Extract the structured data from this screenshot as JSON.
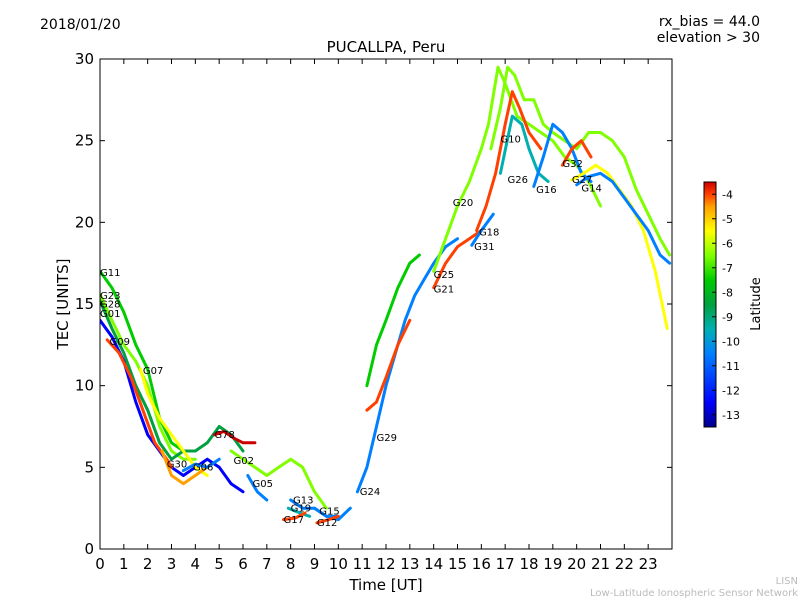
{
  "header": {
    "date": "2018/01/20",
    "rx_bias": "rx_bias = 44.0",
    "elevation": "elevation > 30"
  },
  "footer": {
    "line1": "LISN",
    "line2": "Low-Latitude Ionospheric Sensor Network"
  },
  "colors": {
    "cmap": [
      "#00008b",
      "#0000ff",
      "#0080ff",
      "#00b0b0",
      "#00a040",
      "#00cc00",
      "#80ff00",
      "#ffff00",
      "#ffa000",
      "#ff4000",
      "#cc0000"
    ]
  },
  "chart_data": {
    "type": "line",
    "title": "PUCALLPA, Peru",
    "xlabel": "Time [UT]",
    "ylabel": "TEC [UNITS]",
    "xlim": [
      0,
      24
    ],
    "ylim": [
      0,
      30
    ],
    "xticks": [
      0,
      1,
      2,
      3,
      4,
      5,
      6,
      7,
      8,
      9,
      10,
      11,
      12,
      13,
      14,
      15,
      16,
      17,
      18,
      19,
      20,
      21,
      22,
      23
    ],
    "yticks": [
      0,
      5,
      10,
      15,
      20,
      25,
      30
    ],
    "colorbar": {
      "label": "Latitude",
      "min": -13.5,
      "max": -3.5,
      "ticks": [
        -13,
        -12,
        -11,
        -10,
        -9,
        -8,
        -7,
        -6,
        -5,
        -4
      ]
    },
    "series": [
      {
        "name": "G11",
        "lat": -9,
        "label_at": [
          0.0,
          16.7
        ],
        "points": [
          [
            0,
            17.0
          ],
          [
            0.5,
            16.0
          ],
          [
            1.0,
            14.5
          ],
          [
            1.5,
            12.5
          ],
          [
            2.0,
            11.0
          ],
          [
            2.5,
            8.0
          ],
          [
            3.0,
            6.5
          ],
          [
            3.5,
            6.0
          ]
        ]
      },
      {
        "name": "G23",
        "lat": -8,
        "label_at": [
          0.0,
          15.3
        ],
        "points": [
          [
            0,
            15.6
          ],
          [
            0.5,
            14.0
          ],
          [
            1.0,
            12.5
          ],
          [
            1.5,
            11.5
          ],
          [
            2.0,
            10.0
          ],
          [
            2.5,
            7.5
          ],
          [
            3.0,
            6.0
          ],
          [
            3.5,
            5.5
          ],
          [
            4.0,
            5.5
          ]
        ]
      },
      {
        "name": "G28",
        "lat": -10,
        "label_at": [
          0.0,
          14.8
        ],
        "points": [
          [
            0,
            15.2
          ],
          [
            0.5,
            13.5
          ],
          [
            1.0,
            12.0
          ],
          [
            1.5,
            10.0
          ],
          [
            2.0,
            8.5
          ],
          [
            2.5,
            6.5
          ],
          [
            3.0,
            5.5
          ],
          [
            3.5,
            6.0
          ],
          [
            4.0,
            6.0
          ],
          [
            4.5,
            6.5
          ],
          [
            5.0,
            7.5
          ],
          [
            5.5,
            7.0
          ],
          [
            6.0,
            6.0
          ]
        ]
      },
      {
        "name": "G01",
        "lat": -13,
        "label_at": [
          0.0,
          14.2
        ],
        "points": [
          [
            0,
            14.0
          ],
          [
            0.5,
            13.0
          ],
          [
            1.0,
            11.5
          ],
          [
            1.5,
            9.0
          ],
          [
            2.0,
            7.0
          ],
          [
            2.5,
            6.0
          ],
          [
            3.0,
            5.0
          ],
          [
            3.5,
            4.5
          ],
          [
            4.0,
            5.0
          ],
          [
            4.5,
            5.5
          ],
          [
            5.0,
            5.0
          ],
          [
            5.5,
            4.0
          ],
          [
            6.0,
            3.5
          ]
        ]
      },
      {
        "name": "G09",
        "lat": -5,
        "label_at": [
          0.4,
          12.5
        ],
        "points": [
          [
            0.3,
            12.8
          ],
          [
            0.8,
            12.0
          ],
          [
            1.3,
            10.5
          ],
          [
            1.8,
            8.5
          ],
          [
            2.3,
            6.5
          ],
          [
            2.8,
            5.5
          ],
          [
            3.0,
            5.0
          ]
        ]
      },
      {
        "name": "G07",
        "lat": -7,
        "label_at": [
          1.8,
          10.7
        ],
        "points": [
          [
            1.7,
            11.0
          ],
          [
            2.0,
            9.5
          ],
          [
            2.5,
            8.0
          ],
          [
            3.0,
            7.0
          ],
          [
            3.5,
            6.0
          ],
          [
            4.0,
            5.0
          ],
          [
            4.5,
            4.5
          ]
        ]
      },
      {
        "name": "G30",
        "lat": -6,
        "label_at": [
          2.8,
          5.0
        ],
        "points": [
          [
            2.6,
            6.0
          ],
          [
            3.0,
            4.5
          ],
          [
            3.5,
            4.0
          ],
          [
            4.0,
            4.5
          ],
          [
            4.5,
            5.0
          ]
        ]
      },
      {
        "name": "G06",
        "lat": -12,
        "label_at": [
          3.9,
          4.8
        ],
        "points": [
          [
            3.5,
            4.8
          ],
          [
            4.0,
            5.2
          ],
          [
            4.5,
            5.0
          ],
          [
            5.0,
            5.5
          ]
        ]
      },
      {
        "name": "G78",
        "lat": -4,
        "label_at": [
          4.8,
          6.8
        ],
        "points": [
          [
            4.8,
            7.0
          ],
          [
            5.2,
            7.2
          ],
          [
            5.6,
            6.8
          ],
          [
            6.0,
            6.5
          ],
          [
            6.5,
            6.5
          ]
        ]
      },
      {
        "name": "G02",
        "lat": -8,
        "label_at": [
          5.6,
          5.2
        ],
        "points": [
          [
            5.5,
            6.0
          ],
          [
            6.0,
            5.5
          ],
          [
            6.5,
            5.0
          ],
          [
            7.0,
            4.5
          ],
          [
            7.5,
            5.0
          ],
          [
            8.0,
            5.5
          ],
          [
            8.5,
            5.0
          ],
          [
            9.0,
            3.5
          ],
          [
            9.5,
            2.5
          ]
        ]
      },
      {
        "name": "G05",
        "lat": -12,
        "label_at": [
          6.4,
          3.8
        ],
        "points": [
          [
            6.2,
            4.5
          ],
          [
            6.6,
            3.5
          ],
          [
            7.0,
            3.0
          ]
        ]
      },
      {
        "name": "G13",
        "lat": -12,
        "label_at": [
          8.1,
          2.8
        ],
        "points": [
          [
            8.0,
            3.0
          ],
          [
            8.5,
            2.5
          ],
          [
            9.0,
            2.5
          ],
          [
            9.5,
            2.0
          ],
          [
            10.0,
            2.0
          ]
        ]
      },
      {
        "name": "G19",
        "lat": -11,
        "label_at": [
          8.0,
          2.3
        ],
        "points": [
          [
            7.9,
            2.5
          ],
          [
            8.4,
            2.2
          ],
          [
            8.8,
            2.0
          ]
        ]
      },
      {
        "name": "G17",
        "lat": -5,
        "label_at": [
          7.7,
          1.6
        ],
        "points": [
          [
            7.7,
            1.8
          ],
          [
            8.2,
            1.9
          ],
          [
            8.6,
            2.2
          ]
        ]
      },
      {
        "name": "G15",
        "lat": -12,
        "label_at": [
          9.2,
          2.1
        ],
        "points": [
          [
            9.0,
            2.5
          ],
          [
            9.5,
            2.0
          ],
          [
            10.0,
            1.8
          ],
          [
            10.5,
            2.5
          ]
        ]
      },
      {
        "name": "G12",
        "lat": -5,
        "label_at": [
          9.1,
          1.4
        ],
        "points": [
          [
            9.1,
            1.6
          ],
          [
            9.6,
            1.8
          ],
          [
            10.0,
            2.0
          ]
        ]
      },
      {
        "name": "G24",
        "lat": -12,
        "label_at": [
          10.9,
          3.3
        ],
        "points": [
          [
            10.8,
            3.5
          ],
          [
            11.2,
            5.0
          ],
          [
            11.6,
            7.5
          ],
          [
            12.0,
            10.0
          ],
          [
            12.4,
            12.0
          ],
          [
            12.8,
            14.0
          ],
          [
            13.2,
            15.5
          ],
          [
            13.6,
            16.5
          ],
          [
            14.0,
            17.5
          ],
          [
            14.5,
            18.5
          ],
          [
            15.0,
            19.0
          ]
        ]
      },
      {
        "name": "G29",
        "lat": -5,
        "label_at": [
          11.6,
          6.6
        ],
        "points": [
          [
            11.2,
            8.5
          ],
          [
            11.6,
            9.0
          ],
          [
            12.0,
            10.5
          ],
          [
            12.5,
            12.5
          ],
          [
            13.0,
            14.0
          ]
        ]
      },
      {
        "name": "G25",
        "lat": -9,
        "label_at": [
          14.0,
          16.6
        ],
        "points": [
          [
            11.2,
            10.0
          ],
          [
            11.6,
            12.5
          ],
          [
            12.0,
            14.0
          ],
          [
            12.5,
            16.0
          ],
          [
            13.0,
            17.5
          ],
          [
            13.4,
            18.0
          ]
        ]
      },
      {
        "name": "G21",
        "lat": -5,
        "label_at": [
          14.0,
          15.7
        ],
        "points": [
          [
            14.0,
            16.0
          ],
          [
            14.5,
            17.5
          ],
          [
            15.0,
            18.5
          ],
          [
            15.5,
            19.0
          ],
          [
            16.0,
            19.5
          ]
        ]
      },
      {
        "name": "G20",
        "lat": -8,
        "label_at": [
          14.8,
          21.0
        ],
        "points": [
          [
            14.0,
            17.0
          ],
          [
            14.5,
            19.0
          ],
          [
            15.0,
            21.0
          ],
          [
            15.5,
            22.5
          ],
          [
            16.0,
            24.5
          ],
          [
            16.3,
            26.0
          ],
          [
            16.7,
            29.5
          ],
          [
            17.0,
            28.5
          ],
          [
            17.5,
            26.5
          ],
          [
            18.0,
            26.0
          ],
          [
            18.5,
            25.5
          ],
          [
            19.0,
            25.0
          ],
          [
            19.5,
            24.0
          ],
          [
            20.0,
            23.5
          ],
          [
            20.5,
            22.5
          ],
          [
            21.0,
            21.0
          ]
        ]
      },
      {
        "name": "G18",
        "lat": -5,
        "label_at": [
          15.9,
          19.2
        ],
        "points": [
          [
            15.8,
            19.5
          ],
          [
            16.2,
            21.0
          ],
          [
            16.6,
            23.0
          ],
          [
            17.0,
            26.0
          ],
          [
            17.3,
            28.0
          ],
          [
            17.6,
            27.0
          ],
          [
            18.0,
            25.5
          ],
          [
            18.5,
            24.5
          ]
        ]
      },
      {
        "name": "G31",
        "lat": -12,
        "label_at": [
          15.7,
          18.3
        ],
        "points": [
          [
            15.6,
            18.6
          ],
          [
            16.0,
            19.5
          ],
          [
            16.5,
            20.5
          ]
        ]
      },
      {
        "name": "G10",
        "lat": -8,
        "label_at": [
          16.8,
          24.9
        ],
        "points": [
          [
            16.4,
            24.5
          ],
          [
            16.8,
            27.0
          ],
          [
            17.1,
            29.5
          ],
          [
            17.4,
            29.0
          ],
          [
            17.8,
            27.5
          ],
          [
            18.2,
            27.5
          ],
          [
            18.6,
            26.0
          ],
          [
            19.0,
            25.5
          ],
          [
            19.5,
            25.0
          ],
          [
            20.0,
            24.5
          ],
          [
            20.5,
            25.5
          ],
          [
            21.0,
            25.5
          ],
          [
            21.5,
            25.0
          ],
          [
            22.0,
            24.0
          ],
          [
            22.5,
            22.0
          ],
          [
            23.0,
            20.5
          ],
          [
            23.5,
            19.0
          ],
          [
            23.9,
            18.0
          ]
        ]
      },
      {
        "name": "G26",
        "lat": -11,
        "label_at": [
          17.1,
          22.4
        ],
        "points": [
          [
            16.8,
            23.0
          ],
          [
            17.3,
            26.5
          ],
          [
            17.7,
            26.0
          ],
          [
            18.0,
            24.5
          ],
          [
            18.4,
            23.0
          ],
          [
            18.8,
            22.5
          ]
        ]
      },
      {
        "name": "G16",
        "lat": -12,
        "label_at": [
          18.3,
          21.8
        ],
        "points": [
          [
            18.2,
            22.2
          ],
          [
            18.6,
            24.0
          ],
          [
            19.0,
            26.0
          ],
          [
            19.4,
            25.5
          ],
          [
            19.8,
            24.5
          ],
          [
            20.2,
            23.0
          ],
          [
            20.6,
            22.5
          ]
        ]
      },
      {
        "name": "G32",
        "lat": -5,
        "label_at": [
          19.4,
          23.4
        ],
        "points": [
          [
            19.4,
            23.5
          ],
          [
            19.8,
            24.5
          ],
          [
            20.2,
            25.0
          ],
          [
            20.6,
            24.0
          ]
        ]
      },
      {
        "name": "G27",
        "lat": -7,
        "label_at": [
          19.8,
          22.4
        ],
        "points": [
          [
            19.8,
            22.6
          ],
          [
            20.3,
            23.0
          ],
          [
            20.8,
            23.5
          ],
          [
            21.3,
            23.0
          ],
          [
            21.8,
            22.0
          ],
          [
            22.3,
            21.0
          ],
          [
            22.8,
            19.5
          ],
          [
            23.3,
            17.0
          ],
          [
            23.8,
            13.5
          ]
        ]
      },
      {
        "name": "G14",
        "lat": -12,
        "label_at": [
          20.2,
          21.9
        ],
        "points": [
          [
            20.0,
            22.3
          ],
          [
            20.5,
            22.8
          ],
          [
            21.0,
            23.0
          ],
          [
            21.5,
            22.5
          ],
          [
            22.0,
            21.5
          ],
          [
            22.5,
            20.5
          ],
          [
            23.0,
            19.5
          ],
          [
            23.5,
            18.0
          ],
          [
            23.9,
            17.5
          ]
        ]
      }
    ]
  }
}
